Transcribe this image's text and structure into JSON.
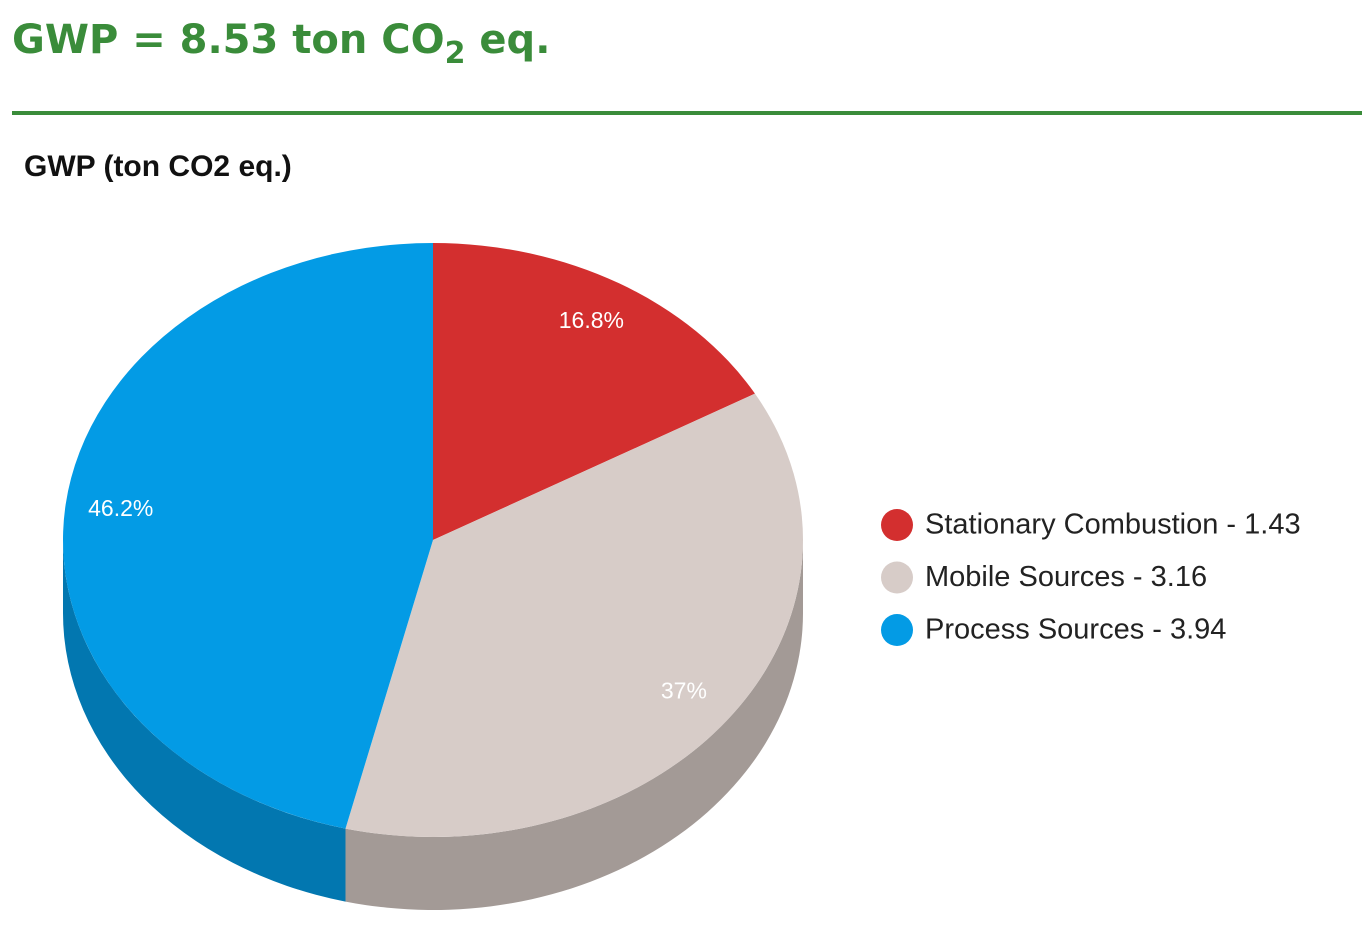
{
  "header": {
    "title_parts": [
      "GWP = 8.53 ton CO",
      "2",
      " eq."
    ]
  },
  "chart_data": {
    "type": "pie",
    "title": "GWP (ton CO2 eq.)",
    "categories": [
      "Stationary Combustion - 1.43",
      "Mobile Sources - 3.16",
      "Process Sources - 3.94"
    ],
    "values": [
      16.8,
      37,
      46.2
    ],
    "value_labels": [
      "16.8%",
      "37%",
      "46.2%"
    ],
    "colors": [
      "#d32f2f",
      "#d7ccc8",
      "#039be5"
    ],
    "depth_colors": [
      "#9a2222",
      "#a39a96",
      "#0277b0"
    ]
  }
}
